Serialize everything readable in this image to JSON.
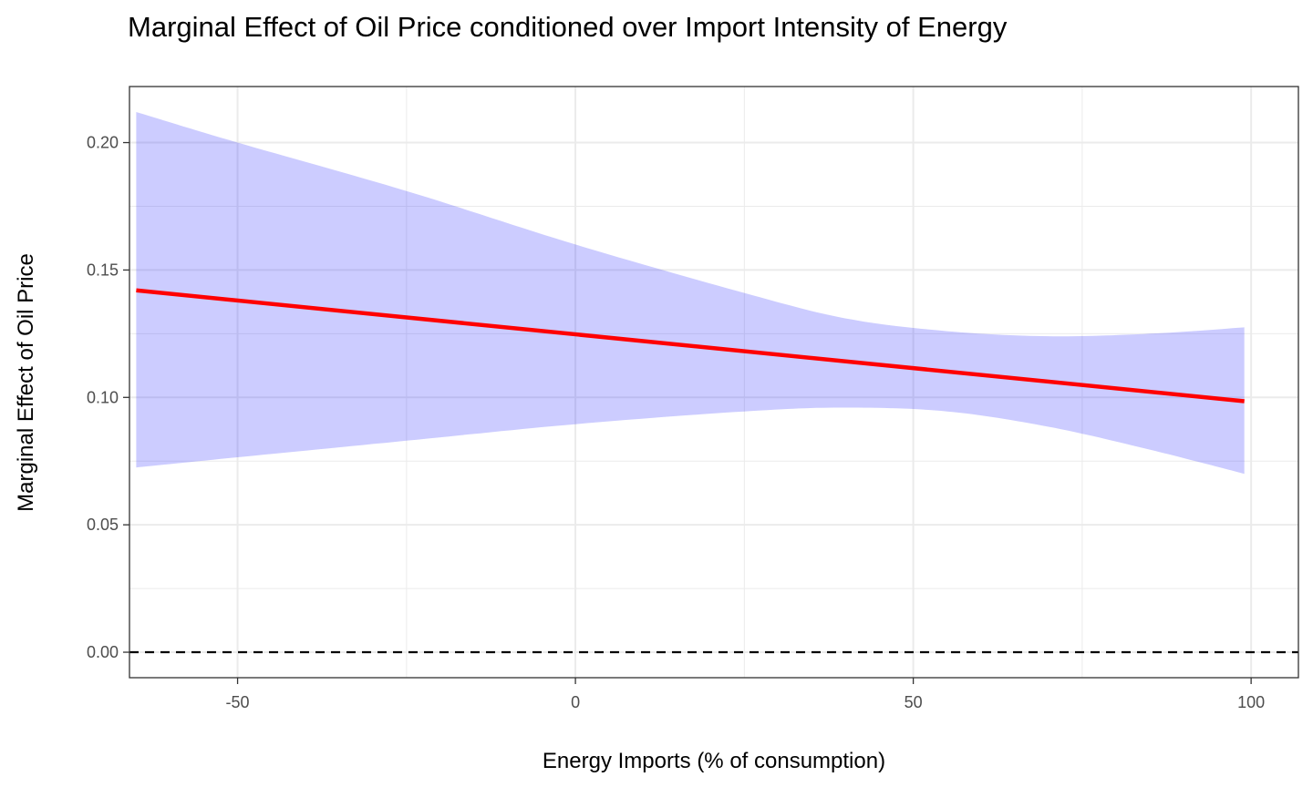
{
  "chart_data": {
    "type": "line",
    "title": "Marginal Effect of Oil Price conditioned over Import Intensity of Energy",
    "xlabel": "Energy Imports (% of consumption)",
    "ylabel": "Marginal Effect of Oil Price",
    "xlim": [
      -66,
      107
    ],
    "ylim": [
      -0.01,
      0.222
    ],
    "x_ticks": [
      -50,
      0,
      50,
      100
    ],
    "x_tick_labels": [
      "-50",
      "0",
      "50",
      "100"
    ],
    "y_ticks": [
      0.0,
      0.05,
      0.1,
      0.15,
      0.2
    ],
    "y_tick_labels": [
      "0.00",
      "0.05",
      "0.10",
      "0.15",
      "0.20"
    ],
    "grid": true,
    "reference_line": {
      "y": 0,
      "style": "dashed",
      "color": "#000000"
    },
    "series": [
      {
        "x": [
          -65,
          99
        ],
        "values": [
          0.142,
          0.0985
        ],
        "color": "#ff0000"
      }
    ],
    "confidence_band": {
      "color": "#0000ff",
      "opacity": 0.2,
      "x": [
        -65,
        -50,
        -25,
        0,
        25,
        40,
        55,
        70,
        85,
        99
      ],
      "upper": [
        0.212,
        0.2,
        0.181,
        0.16,
        0.141,
        0.131,
        0.126,
        0.124,
        0.125,
        0.1275
      ],
      "lower": [
        0.0725,
        0.0765,
        0.083,
        0.0895,
        0.0945,
        0.096,
        0.0945,
        0.0885,
        0.0795,
        0.07
      ]
    }
  }
}
